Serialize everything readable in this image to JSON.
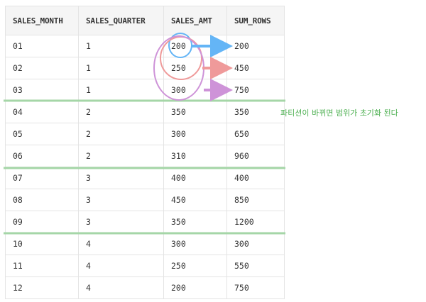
{
  "table": {
    "headers": [
      "SALES_MONTH",
      "SALES_QUARTER",
      "SALES_AMT",
      "SUM_ROWS"
    ],
    "rows": [
      [
        "01",
        "1",
        "200",
        "200"
      ],
      [
        "02",
        "1",
        "250",
        "450"
      ],
      [
        "03",
        "1",
        "300",
        "750"
      ],
      [
        "04",
        "2",
        "350",
        "350"
      ],
      [
        "05",
        "2",
        "300",
        "650"
      ],
      [
        "06",
        "2",
        "310",
        "960"
      ],
      [
        "07",
        "3",
        "400",
        "400"
      ],
      [
        "08",
        "3",
        "450",
        "850"
      ],
      [
        "09",
        "3",
        "350",
        "1200"
      ],
      [
        "10",
        "4",
        "300",
        "300"
      ],
      [
        "11",
        "4",
        "250",
        "550"
      ],
      [
        "12",
        "4",
        "200",
        "750"
      ]
    ]
  },
  "annotation": {
    "note": "파티션이 바뀌면 범위가 초기화 된다"
  },
  "colors": {
    "partition_line": "#a5d6a7",
    "note_text": "#4caf50",
    "blue": "#64b5f6",
    "red": "#ef9a9a",
    "purple": "#ce93d8"
  }
}
